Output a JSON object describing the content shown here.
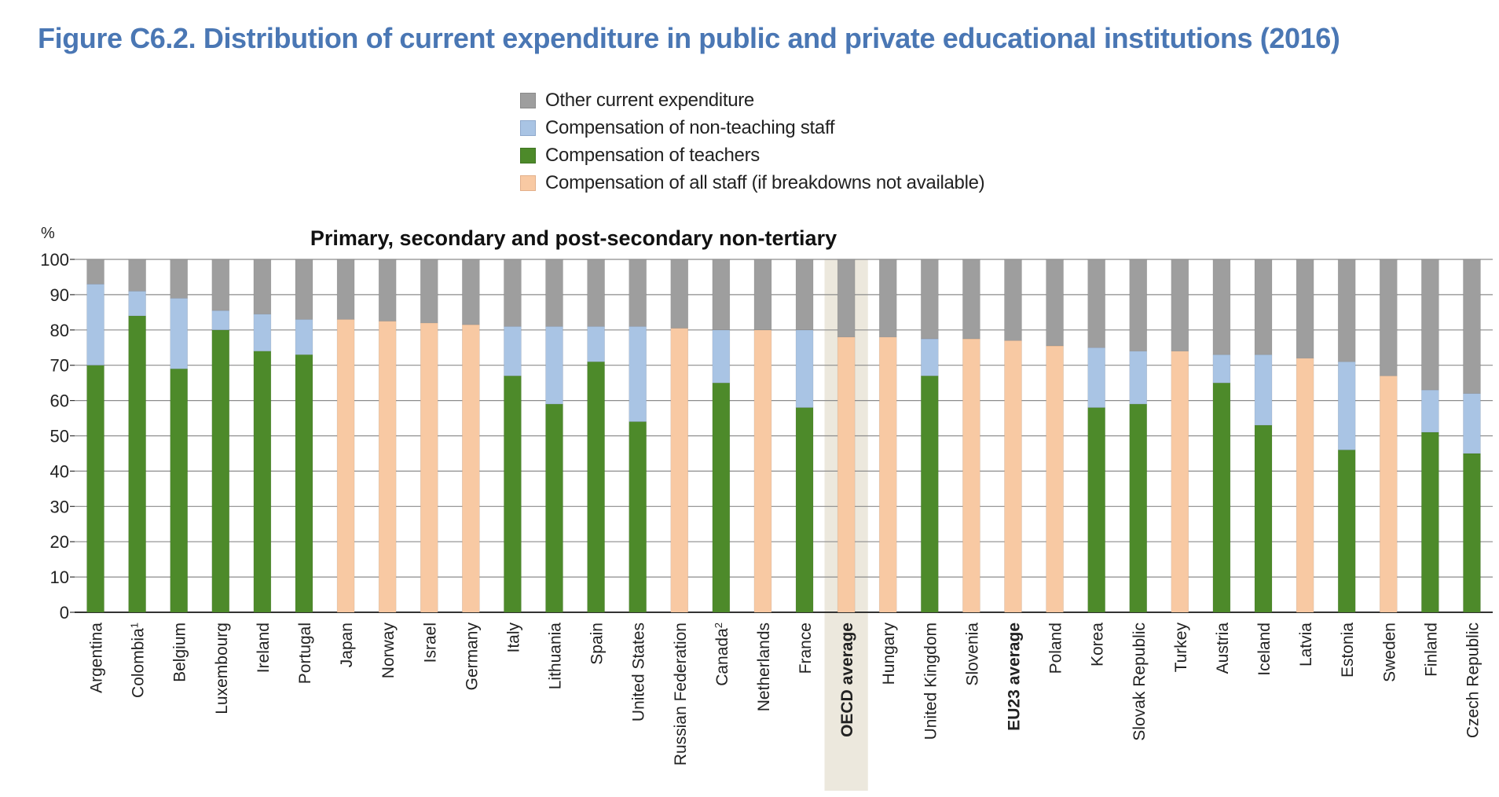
{
  "title": "Figure C6.2. Distribution of current expenditure in public and private educational institutions (2016)",
  "legend": [
    {
      "label": "Other current expenditure",
      "color": "#9e9e9e"
    },
    {
      "label": "Compensation of non-teaching staff",
      "color": "#a9c4e4"
    },
    {
      "label": "Compensation of teachers",
      "color": "#4d8a2a"
    },
    {
      "label": "Compensation of all staff (if breakdowns not available)",
      "color": "#f8c9a3"
    }
  ],
  "chart_data": {
    "type": "bar",
    "stacked": true,
    "title": "Primary, secondary and post-secondary non-tertiary",
    "ylabel": "%",
    "ylim": [
      0,
      100
    ],
    "yticks": [
      "0",
      "10",
      "20",
      "30",
      "40",
      "50",
      "60",
      "70",
      "80",
      "90",
      "100"
    ],
    "grid": true,
    "legend_position": "top-center",
    "highlighted_category": "OECD average",
    "bold_categories": [
      "OECD average",
      "EU23 average"
    ],
    "categories": [
      {
        "name": "Argentina",
        "sup": ""
      },
      {
        "name": "Colombia",
        "sup": "1"
      },
      {
        "name": "Belgium",
        "sup": ""
      },
      {
        "name": "Luxembourg",
        "sup": ""
      },
      {
        "name": "Ireland",
        "sup": ""
      },
      {
        "name": "Portugal",
        "sup": ""
      },
      {
        "name": "Japan",
        "sup": ""
      },
      {
        "name": "Norway",
        "sup": ""
      },
      {
        "name": "Israel",
        "sup": ""
      },
      {
        "name": "Germany",
        "sup": ""
      },
      {
        "name": "Italy",
        "sup": ""
      },
      {
        "name": "Lithuania",
        "sup": ""
      },
      {
        "name": "Spain",
        "sup": ""
      },
      {
        "name": "United States",
        "sup": ""
      },
      {
        "name": "Russian Federation",
        "sup": ""
      },
      {
        "name": "Canada",
        "sup": "2"
      },
      {
        "name": "Netherlands",
        "sup": ""
      },
      {
        "name": "France",
        "sup": ""
      },
      {
        "name": "OECD average",
        "sup": ""
      },
      {
        "name": "Hungary",
        "sup": ""
      },
      {
        "name": "United Kingdom",
        "sup": ""
      },
      {
        "name": "Slovenia",
        "sup": ""
      },
      {
        "name": "EU23 average",
        "sup": ""
      },
      {
        "name": "Poland",
        "sup": ""
      },
      {
        "name": "Korea",
        "sup": ""
      },
      {
        "name": "Slovak Republic",
        "sup": ""
      },
      {
        "name": "Turkey",
        "sup": ""
      },
      {
        "name": "Austria",
        "sup": ""
      },
      {
        "name": "Iceland",
        "sup": ""
      },
      {
        "name": "Latvia",
        "sup": ""
      },
      {
        "name": "Estonia",
        "sup": ""
      },
      {
        "name": "Sweden",
        "sup": ""
      },
      {
        "name": "Finland",
        "sup": ""
      },
      {
        "name": "Czech Republic",
        "sup": ""
      }
    ],
    "series": [
      {
        "name": "Compensation of teachers",
        "color": "#4d8a2a",
        "values": [
          70,
          84,
          69,
          80,
          74,
          73,
          0,
          0,
          0,
          0,
          67,
          59,
          71,
          54,
          0,
          65,
          0,
          58,
          0,
          0,
          67,
          0,
          0,
          0,
          58,
          59,
          0,
          65,
          53,
          0,
          46,
          0,
          51,
          45
        ]
      },
      {
        "name": "Compensation of all staff (if breakdowns not available)",
        "color": "#f8c9a3",
        "values": [
          0,
          0,
          0,
          0,
          0,
          0,
          83,
          82.5,
          82,
          81.5,
          0,
          0,
          0,
          0,
          80.5,
          0,
          80,
          0,
          78,
          78,
          0,
          77.5,
          77,
          75.5,
          0,
          0,
          74,
          0,
          0,
          72,
          0,
          67,
          0,
          0
        ]
      },
      {
        "name": "Compensation of non-teaching staff",
        "color": "#a9c4e4",
        "values": [
          23,
          7,
          20,
          5.5,
          10.5,
          10,
          0,
          0,
          0,
          0,
          14,
          22,
          10,
          27,
          0,
          15,
          0,
          22,
          0,
          0,
          10.5,
          0,
          0,
          0,
          17,
          15,
          0,
          8,
          20,
          0,
          25,
          0,
          12,
          17
        ]
      },
      {
        "name": "Other current expenditure",
        "color": "#9e9e9e",
        "values": [
          7,
          9,
          11,
          14.5,
          15.5,
          17,
          17,
          17.5,
          18,
          18.5,
          19,
          19,
          19,
          19,
          19.5,
          20,
          20,
          20,
          22,
          22,
          22.5,
          22.5,
          23,
          24.5,
          25,
          26,
          26,
          27,
          27,
          28,
          29,
          33,
          37,
          38
        ]
      }
    ]
  }
}
